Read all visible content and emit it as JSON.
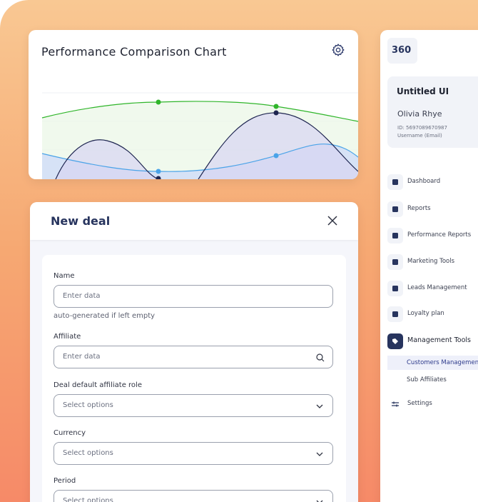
{
  "chart": {
    "title": "Performance Comparison Chart"
  },
  "form": {
    "title": "New deal",
    "fields": [
      {
        "label": "Name",
        "placeholder": "Enter data",
        "hint": "auto-generated if left empty"
      },
      {
        "label": "Affiliate",
        "placeholder": "Enter data"
      },
      {
        "label": "Deal default affiliate role",
        "placeholder": "Select options"
      },
      {
        "label": "Currency",
        "placeholder": "Select options"
      },
      {
        "label": "Period",
        "placeholder": "Select options"
      }
    ]
  },
  "sidebar": {
    "logo": "360",
    "profile": {
      "org": "Untitled UI",
      "name": "Olivia Rhye",
      "id": "ID: 5697089670987",
      "username": "Username (Email)"
    },
    "nav": [
      "Dashboard",
      "Reports",
      "Performance Reports",
      "Marketing Tools",
      "Leads Management",
      "Loyalty plan",
      "Management Tools"
    ],
    "subnav": [
      "Customers Management",
      "Sub Affiliates"
    ],
    "settings": "Settings"
  }
}
